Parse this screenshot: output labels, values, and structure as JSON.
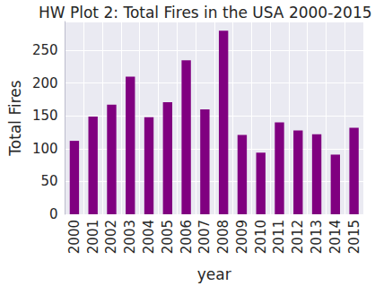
{
  "chart_data": {
    "type": "bar",
    "title": "HW Plot 2: Total Fires in the USA 2000-2015",
    "x_label": "year",
    "y_label": "Total Fires",
    "categories": [
      "2000",
      "2001",
      "2002",
      "2003",
      "2004",
      "2005",
      "2006",
      "2007",
      "2008",
      "2009",
      "2010",
      "2011",
      "2012",
      "2013",
      "2014",
      "2015"
    ],
    "values": [
      112,
      149,
      167,
      210,
      148,
      171,
      235,
      160,
      280,
      121,
      94,
      140,
      128,
      122,
      91,
      132
    ],
    "color": "#800080",
    "ylim": [
      0,
      294
    ],
    "yticks": [
      0,
      50,
      100,
      150,
      200,
      250
    ],
    "grid": true
  }
}
